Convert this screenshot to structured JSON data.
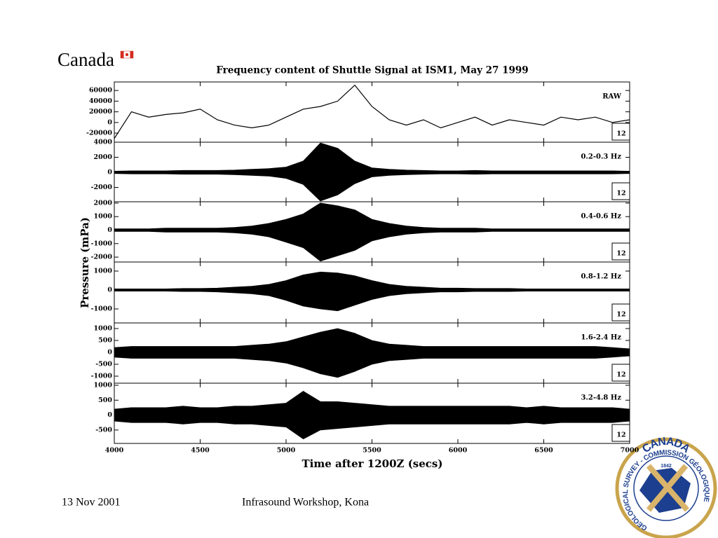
{
  "header": {
    "wordmark": "Canada"
  },
  "figure": {
    "title": "Frequency content of Shuttle Signal at ISM1, May 27 1999",
    "x_label": "Time after 1200Z (secs)",
    "y_label": "Pressure (mPa)"
  },
  "chart_data": [
    {
      "type": "line",
      "label": "RAW",
      "box_label": "12",
      "color": "#000000",
      "x": [
        4000,
        4100,
        4200,
        4300,
        4400,
        4500,
        4600,
        4700,
        4800,
        4900,
        5000,
        5100,
        5200,
        5300,
        5400,
        5500,
        5600,
        5700,
        5800,
        5900,
        6000,
        6100,
        6200,
        6300,
        6400,
        6500,
        6600,
        6700,
        6800,
        6900,
        7000
      ],
      "values": [
        -30000,
        20000,
        10000,
        15000,
        18000,
        25000,
        5000,
        -5000,
        -10000,
        -5000,
        10000,
        25000,
        30000,
        40000,
        70000,
        30000,
        5000,
        -5000,
        5000,
        -10000,
        0,
        10000,
        -5000,
        5000,
        0,
        -5000,
        10000,
        5000,
        10000,
        0,
        5000
      ],
      "xlim": [
        4000,
        7000
      ],
      "xticks": [
        4000,
        4500,
        5000,
        5500,
        6000,
        6500,
        7000
      ],
      "ylim": [
        -37000,
        76000
      ],
      "yticks": [
        60000,
        40000,
        20000,
        0,
        -20000
      ]
    },
    {
      "type": "band",
      "label": "0.2-0.3 Hz",
      "box_label": "12",
      "color": "#000000",
      "x": [
        4000,
        4100,
        4200,
        4300,
        4400,
        4500,
        4600,
        4700,
        4800,
        4900,
        5000,
        5100,
        5200,
        5300,
        5400,
        5500,
        5600,
        5700,
        5800,
        5900,
        6000,
        6100,
        6200,
        6300,
        6400,
        6500,
        6600,
        6700,
        6800,
        6900,
        7000
      ],
      "upper": [
        150,
        200,
        200,
        200,
        250,
        250,
        250,
        300,
        400,
        500,
        700,
        1500,
        3900,
        3200,
        1500,
        600,
        400,
        300,
        250,
        200,
        200,
        250,
        200,
        200,
        200,
        200,
        200,
        200,
        200,
        200,
        150
      ],
      "lower": [
        -150,
        -200,
        -200,
        -200,
        -250,
        -250,
        -250,
        -300,
        -400,
        -500,
        -800,
        -1600,
        -3800,
        -3000,
        -1500,
        -600,
        -400,
        -300,
        -250,
        -200,
        -200,
        -250,
        -200,
        -200,
        -200,
        -200,
        -200,
        -200,
        -200,
        -200,
        -150
      ],
      "xlim": [
        4000,
        7000
      ],
      "xticks": [
        4000,
        4500,
        5000,
        5500,
        6000,
        6500,
        7000
      ],
      "ylim": [
        -3900,
        4000
      ],
      "yticks": [
        4000,
        2000,
        0,
        -2000
      ]
    },
    {
      "type": "band",
      "label": "0.4-0.6 Hz",
      "box_label": "12",
      "color": "#000000",
      "x": [
        4000,
        4100,
        4200,
        4300,
        4400,
        4500,
        4600,
        4700,
        4800,
        4900,
        5000,
        5100,
        5200,
        5300,
        5400,
        5500,
        5600,
        5700,
        5800,
        5900,
        6000,
        6100,
        6200,
        6300,
        6400,
        6500,
        6600,
        6700,
        6800,
        6900,
        7000
      ],
      "upper": [
        100,
        100,
        100,
        150,
        150,
        150,
        150,
        200,
        300,
        500,
        800,
        1200,
        2000,
        1800,
        1500,
        800,
        500,
        300,
        200,
        150,
        150,
        150,
        100,
        100,
        100,
        100,
        100,
        100,
        100,
        100,
        100
      ],
      "lower": [
        -100,
        -100,
        -100,
        -150,
        -150,
        -150,
        -150,
        -200,
        -300,
        -500,
        -900,
        -1300,
        -2300,
        -1900,
        -1500,
        -800,
        -500,
        -300,
        -200,
        -150,
        -150,
        -150,
        -100,
        -100,
        -100,
        -100,
        -100,
        -100,
        -100,
        -100,
        -100
      ],
      "xlim": [
        4000,
        7000
      ],
      "xticks": [
        4000,
        4500,
        5000,
        5500,
        6000,
        6500,
        7000
      ],
      "ylim": [
        -2360,
        2100
      ],
      "yticks": [
        2000,
        1000,
        0,
        -1000,
        -2000
      ]
    },
    {
      "type": "band",
      "label": "0.8-1.2 Hz",
      "box_label": "12",
      "color": "#000000",
      "x": [
        4000,
        4100,
        4200,
        4300,
        4400,
        4500,
        4600,
        4700,
        4800,
        4900,
        5000,
        5100,
        5200,
        5300,
        5400,
        5500,
        5600,
        5700,
        5800,
        5900,
        6000,
        6100,
        6200,
        6300,
        6400,
        6500,
        6600,
        6700,
        6800,
        6900,
        7000
      ],
      "upper": [
        60,
        60,
        60,
        60,
        80,
        80,
        100,
        150,
        200,
        300,
        500,
        800,
        950,
        900,
        750,
        500,
        300,
        200,
        150,
        100,
        100,
        80,
        80,
        80,
        60,
        60,
        60,
        60,
        60,
        60,
        60
      ],
      "lower": [
        -60,
        -60,
        -60,
        -60,
        -80,
        -80,
        -100,
        -150,
        -200,
        -300,
        -550,
        -850,
        -1000,
        -1100,
        -800,
        -500,
        -300,
        -200,
        -150,
        -100,
        -100,
        -80,
        -80,
        -80,
        -60,
        -60,
        -60,
        -60,
        -60,
        -60,
        -60
      ],
      "xlim": [
        4000,
        7000
      ],
      "xticks": [
        4000,
        4500,
        5000,
        5500,
        6000,
        6500,
        7000
      ],
      "ylim": [
        -1740,
        1480
      ],
      "yticks": [
        1000,
        0,
        -1000
      ]
    },
    {
      "type": "band",
      "label": "1.6-2.4 Hz",
      "box_label": "12",
      "color": "#000000",
      "x": [
        4000,
        4100,
        4200,
        4300,
        4400,
        4500,
        4600,
        4700,
        4800,
        4900,
        5000,
        5100,
        5200,
        5300,
        5400,
        5500,
        5600,
        5700,
        5800,
        5900,
        6000,
        6100,
        6200,
        6300,
        6400,
        6500,
        6600,
        6700,
        6800,
        6900,
        7000
      ],
      "upper": [
        200,
        250,
        250,
        250,
        250,
        250,
        250,
        250,
        300,
        350,
        450,
        650,
        850,
        1000,
        800,
        500,
        350,
        300,
        250,
        250,
        250,
        250,
        250,
        250,
        250,
        250,
        250,
        250,
        250,
        200,
        150
      ],
      "lower": [
        -200,
        -250,
        -250,
        -250,
        -250,
        -250,
        -250,
        -250,
        -300,
        -350,
        -450,
        -650,
        -900,
        -1050,
        -800,
        -500,
        -350,
        -300,
        -250,
        -250,
        -250,
        -250,
        -250,
        -250,
        -250,
        -250,
        -250,
        -250,
        -250,
        -200,
        -150
      ],
      "xlim": [
        4000,
        7000
      ],
      "xticks": [
        4000,
        4500,
        5000,
        5500,
        6000,
        6500,
        7000
      ],
      "ylim": [
        -1295,
        1235
      ],
      "yticks": [
        1000,
        500,
        0,
        -500,
        -1000
      ]
    },
    {
      "type": "band",
      "label": "3.2-4.8 Hz",
      "box_label": "12",
      "color": "#000000",
      "x": [
        4000,
        4100,
        4200,
        4300,
        4400,
        4500,
        4600,
        4700,
        4800,
        4900,
        5000,
        5100,
        5200,
        5300,
        5400,
        5500,
        5600,
        5700,
        5800,
        5900,
        6000,
        6100,
        6200,
        6300,
        6400,
        6500,
        6600,
        6700,
        6800,
        6900,
        7000
      ],
      "upper": [
        200,
        250,
        250,
        250,
        300,
        250,
        250,
        300,
        300,
        350,
        400,
        800,
        450,
        450,
        400,
        350,
        300,
        300,
        300,
        300,
        300,
        300,
        300,
        300,
        250,
        300,
        250,
        250,
        250,
        250,
        200
      ],
      "lower": [
        -200,
        -250,
        -250,
        -250,
        -300,
        -250,
        -250,
        -300,
        -300,
        -350,
        -400,
        -800,
        -500,
        -450,
        -400,
        -350,
        -300,
        -300,
        -300,
        -300,
        -300,
        -300,
        -300,
        -300,
        -250,
        -300,
        -250,
        -250,
        -250,
        -250,
        -200
      ],
      "xlim": [
        4000,
        7000
      ],
      "xticks": [
        4000,
        4500,
        5000,
        5500,
        6000,
        6500,
        7000
      ],
      "ylim": [
        -950,
        1070
      ],
      "yticks": [
        1000,
        500,
        0,
        -500
      ]
    }
  ],
  "footer": {
    "date": "13 Nov 2001",
    "event": "Infrasound Workshop, Kona"
  },
  "logo": {
    "top": "CANADA",
    "year": "1842",
    "ring": "GEOLOGICAL SURVEY - COMMISSION GÉOLOGIQUE"
  }
}
